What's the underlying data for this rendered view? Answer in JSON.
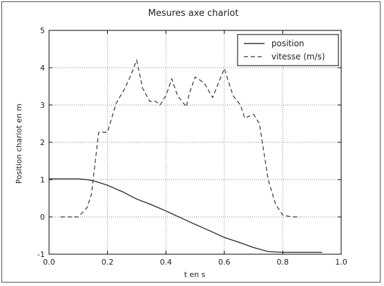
{
  "chart_data": {
    "type": "line",
    "title": "Mesures axe chariot",
    "xlabel": "t en s",
    "ylabel": "Position chariot en m",
    "xlim": [
      0.0,
      1.0
    ],
    "ylim": [
      -1,
      5
    ],
    "xticks": [
      "0.0",
      "0.2",
      "0.4",
      "0.6",
      "0.8",
      "1.0"
    ],
    "yticks": [
      "-1",
      "0",
      "1",
      "2",
      "3",
      "4",
      "5"
    ],
    "grid": true,
    "legend_placement": "top-right",
    "series": [
      {
        "name": "position",
        "style": "solid",
        "color": "#333333",
        "x": [
          0.0,
          0.05,
          0.1,
          0.13,
          0.16,
          0.2,
          0.25,
          0.3,
          0.35,
          0.4,
          0.45,
          0.5,
          0.55,
          0.6,
          0.65,
          0.7,
          0.75,
          0.8,
          0.85,
          0.9,
          0.935
        ],
        "y": [
          1.02,
          1.02,
          1.02,
          1.0,
          0.95,
          0.85,
          0.68,
          0.48,
          0.33,
          0.16,
          -0.02,
          -0.2,
          -0.37,
          -0.55,
          -0.68,
          -0.82,
          -0.93,
          -0.95,
          -0.95,
          -0.95,
          -0.95
        ]
      },
      {
        "name": "vitesse (m/s)",
        "style": "dashed",
        "color": "#333333",
        "x": [
          0.04,
          0.1,
          0.13,
          0.145,
          0.17,
          0.2,
          0.23,
          0.26,
          0.28,
          0.3,
          0.32,
          0.345,
          0.365,
          0.38,
          0.4,
          0.42,
          0.44,
          0.47,
          0.48,
          0.5,
          0.53,
          0.56,
          0.6,
          0.63,
          0.655,
          0.67,
          0.7,
          0.72,
          0.75,
          0.775,
          0.8,
          0.83,
          0.86
        ],
        "y": [
          0.0,
          0.0,
          0.25,
          0.6,
          2.27,
          2.27,
          3.05,
          3.45,
          3.8,
          4.2,
          3.45,
          3.1,
          3.1,
          3.0,
          3.25,
          3.7,
          3.25,
          2.95,
          3.3,
          3.75,
          3.6,
          3.2,
          3.98,
          3.25,
          3.0,
          2.65,
          2.75,
          2.5,
          1.0,
          0.35,
          0.05,
          0.0,
          0.0
        ]
      }
    ]
  }
}
